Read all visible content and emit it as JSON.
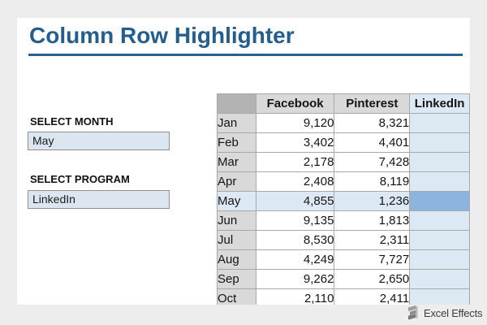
{
  "header": {
    "title": "Column Row Highlighter"
  },
  "controls": {
    "month": {
      "label": "SELECT MONTH",
      "value": "May"
    },
    "program": {
      "label": "SELECT PROGRAM",
      "value": "LinkedIn"
    }
  },
  "table": {
    "columns": [
      "",
      "Facebook",
      "Pinterest",
      "LinkedIn"
    ],
    "rows": [
      [
        "Jan",
        "9,120",
        "8,321",
        ""
      ],
      [
        "Feb",
        "3,402",
        "4,401",
        ""
      ],
      [
        "Mar",
        "2,178",
        "7,428",
        ""
      ],
      [
        "Apr",
        "2,408",
        "8,119",
        ""
      ],
      [
        "May",
        "4,855",
        "1,236",
        ""
      ],
      [
        "Jun",
        "9,135",
        "1,813",
        ""
      ],
      [
        "Jul",
        "8,530",
        "2,311",
        ""
      ],
      [
        "Aug",
        "4,249",
        "7,727",
        ""
      ],
      [
        "Sep",
        "9,262",
        "2,650",
        ""
      ],
      [
        "Oct",
        "2,110",
        "2,411",
        ""
      ]
    ],
    "highlight": {
      "row": "May",
      "column": "LinkedIn"
    }
  },
  "colors": {
    "title_blue": "#245E90",
    "highlight_blue": "#DCE9F5",
    "intersection_blue": "#8DB4DC",
    "select_box_fill": "#DCE6F1",
    "header_cell_gray": "#D9D9D9",
    "corner_cell_gray": "#B3B3B3",
    "page_background": "#EDEDED"
  },
  "footer": {
    "brand": "Excel Effects"
  }
}
